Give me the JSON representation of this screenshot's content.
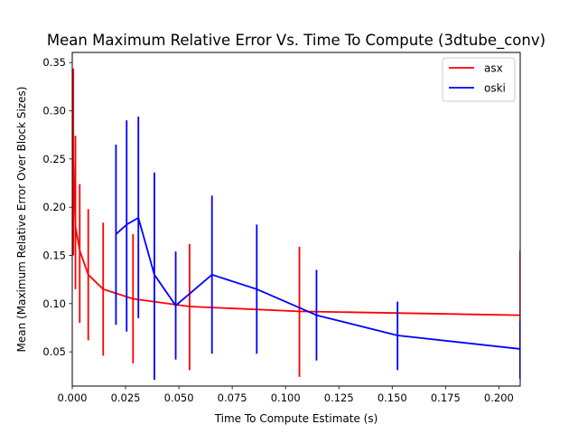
{
  "chart_data": {
    "type": "line",
    "title": "Mean Maximum Relative Error Vs. Time To Compute (3dtube_conv)",
    "xlabel": "Time To Compute Estimate (s)",
    "ylabel": "Mean (Maximum Relative Error Over Block Sizes)",
    "xlim": [
      0,
      0.21
    ],
    "ylim": [
      0.0145,
      0.3605
    ],
    "grid": false,
    "legend_position": "top-right",
    "x_ticks": [
      "0.000",
      "0.025",
      "0.050",
      "0.075",
      "0.100",
      "0.125",
      "0.150",
      "0.175",
      "0.200"
    ],
    "x_tick_values": [
      0,
      0.025,
      0.05,
      0.075,
      0.1,
      0.125,
      0.15,
      0.175,
      0.2
    ],
    "y_ticks": [
      "0.05",
      "0.10",
      "0.15",
      "0.20",
      "0.25",
      "0.30",
      "0.35"
    ],
    "y_tick_values": [
      0.05,
      0.1,
      0.15,
      0.2,
      0.25,
      0.3,
      0.35
    ],
    "series": [
      {
        "name": "asx",
        "color": "#ff0000",
        "x": [
          0.0005,
          0.0015,
          0.0035,
          0.0075,
          0.0145,
          0.0285,
          0.055,
          0.1065,
          0.21
        ],
        "y": [
          0.25,
          0.18,
          0.155,
          0.13,
          0.115,
          0.105,
          0.097,
          0.092,
          0.088
        ],
        "err_low": [
          0.15,
          0.115,
          0.08,
          0.062,
          0.046,
          0.038,
          0.031,
          0.024,
          0.022
        ],
        "err_high": [
          0.344,
          0.274,
          0.224,
          0.198,
          0.184,
          0.172,
          0.162,
          0.159,
          0.155
        ]
      },
      {
        "name": "oski",
        "color": "#0000ff",
        "x": [
          0.0205,
          0.0255,
          0.031,
          0.0385,
          0.0485,
          0.0655,
          0.0865,
          0.1145,
          0.1525,
          0.21
        ],
        "y": [
          0.172,
          0.182,
          0.189,
          0.13,
          0.098,
          0.13,
          0.115,
          0.088,
          0.067,
          0.053
        ],
        "err_low": [
          0.078,
          0.071,
          0.085,
          0.021,
          0.042,
          0.048,
          0.048,
          0.041,
          0.031,
          0.022
        ],
        "err_high": [
          0.265,
          0.29,
          0.294,
          0.236,
          0.154,
          0.212,
          0.182,
          0.135,
          0.102,
          0.082
        ]
      }
    ]
  }
}
